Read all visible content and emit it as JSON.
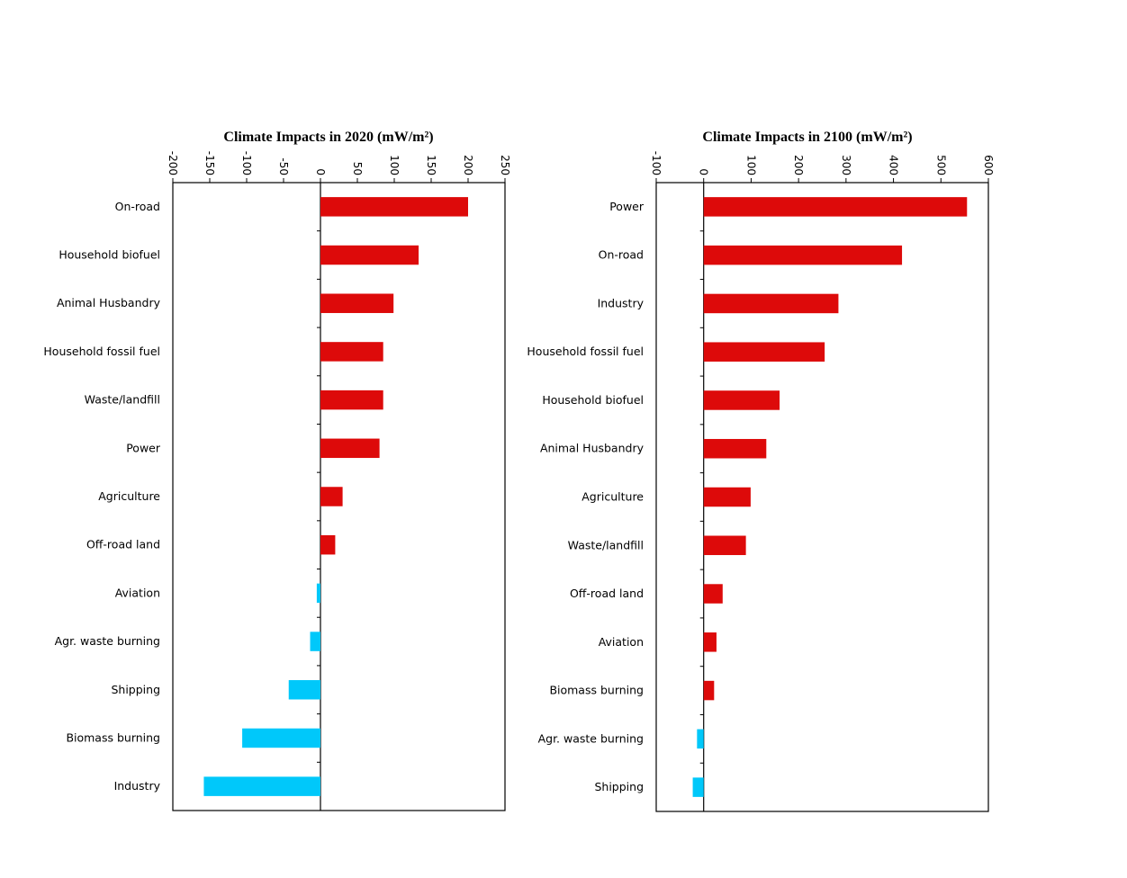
{
  "chart_data": [
    {
      "type": "bar",
      "orientation": "horizontal",
      "title": "Climate Impacts in 2020 (mW/m²)",
      "xlim": [
        -200,
        250
      ],
      "xticks": [
        -200,
        -150,
        -100,
        -50,
        0,
        50,
        100,
        150,
        200,
        250
      ],
      "categories": [
        "On-road",
        "Household biofuel",
        "Animal Husbandry",
        "Household fossil fuel",
        "Waste/landfill",
        "Power",
        "Agriculture",
        "Off-road land",
        "Aviation",
        "Agr. waste burning",
        "Shipping",
        "Biomass burning",
        "Industry"
      ],
      "values": [
        200,
        133,
        99,
        85,
        85,
        80,
        30,
        20,
        -5,
        -14,
        -43,
        -106,
        -158
      ],
      "positive_color": "#dd0a0a",
      "negative_color": "#00c8fa"
    },
    {
      "type": "bar",
      "orientation": "horizontal",
      "title": "Climate Impacts in 2100 (mW/m²)",
      "xlim": [
        -100,
        600
      ],
      "xticks": [
        -100,
        0,
        100,
        200,
        300,
        400,
        500,
        600
      ],
      "categories": [
        "Power",
        "On-road",
        "Industry",
        "Household fossil fuel",
        "Household biofuel",
        "Animal Husbandry",
        "Agriculture",
        "Waste/landfill",
        "Off-road land",
        "Aviation",
        "Biomass burning",
        "Agr. waste burning",
        "Shipping"
      ],
      "values": [
        555,
        418,
        284,
        255,
        160,
        132,
        99,
        89,
        40,
        27,
        22,
        -14,
        -23
      ],
      "positive_color": "#dd0a0a",
      "negative_color": "#00c8fa"
    }
  ]
}
